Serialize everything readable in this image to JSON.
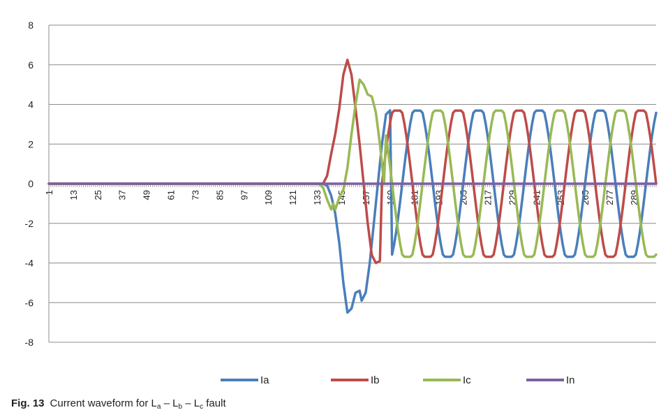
{
  "chart_data": {
    "type": "line",
    "title": "",
    "xlabel": "",
    "ylabel": "",
    "ylim": [
      -8,
      8
    ],
    "y_ticks": [
      "8",
      "6",
      "4",
      "2",
      "0",
      "-2",
      "-4",
      "-6",
      "-8"
    ],
    "x_ticks": [
      "1",
      "13",
      "25",
      "37",
      "49",
      "61",
      "73",
      "85",
      "97",
      "109",
      "121",
      "133",
      "145",
      "157",
      "169",
      "181",
      "193",
      "205",
      "217",
      "229",
      "241",
      "253",
      "265",
      "277",
      "289"
    ],
    "x_range": [
      1,
      300
    ],
    "grid": "horizontal",
    "legend_position": "bottom",
    "fault_start_sample": 136,
    "steady_state_amplitude": 3.8,
    "period_samples": 30,
    "series": [
      {
        "name": "Ia",
        "color": "#4a7ebb",
        "transient_points": [
          [
            136,
            0.0
          ],
          [
            138,
            -0.1
          ],
          [
            140,
            -0.6
          ],
          [
            142,
            -1.5
          ],
          [
            144,
            -3.0
          ],
          [
            146,
            -5.0
          ],
          [
            148,
            -6.5
          ],
          [
            150,
            -6.3
          ],
          [
            152,
            -5.5
          ],
          [
            154,
            -5.4
          ],
          [
            155,
            -5.9
          ],
          [
            157,
            -5.5
          ],
          [
            159,
            -4.0
          ],
          [
            161,
            -2.0
          ],
          [
            163,
            0.0
          ],
          [
            165,
            2.0
          ],
          [
            167,
            3.5
          ],
          [
            169,
            3.7
          ]
        ]
      },
      {
        "name": "Ib",
        "color": "#be4b48",
        "transient_points": [
          [
            136,
            0.0
          ],
          [
            138,
            0.4
          ],
          [
            140,
            1.5
          ],
          [
            142,
            2.5
          ],
          [
            144,
            3.8
          ],
          [
            146,
            5.5
          ],
          [
            148,
            6.25
          ],
          [
            150,
            5.5
          ],
          [
            152,
            3.8
          ],
          [
            154,
            2.0
          ],
          [
            156,
            0.0
          ],
          [
            158,
            -2.0
          ],
          [
            160,
            -3.6
          ],
          [
            162,
            -4.0
          ],
          [
            164,
            -3.9
          ]
        ]
      },
      {
        "name": "Ic",
        "color": "#98b954",
        "transient_points": [
          [
            134,
            0.0
          ],
          [
            136,
            -0.2
          ],
          [
            138,
            -0.8
          ],
          [
            140,
            -1.3
          ],
          [
            141,
            -1.0
          ],
          [
            142,
            -1.3
          ],
          [
            144,
            -0.7
          ],
          [
            146,
            -0.3
          ],
          [
            148,
            0.8
          ],
          [
            150,
            2.5
          ],
          [
            152,
            4.0
          ],
          [
            154,
            5.25
          ],
          [
            156,
            5.0
          ],
          [
            158,
            4.5
          ],
          [
            160,
            4.4
          ],
          [
            162,
            3.6
          ],
          [
            164,
            2.0
          ],
          [
            166,
            0.0
          ]
        ]
      },
      {
        "name": "In",
        "color": "#7d60a0",
        "values_note": "",
        "constant": 0
      }
    ]
  },
  "caption": {
    "label": "Fig. 13",
    "text_before": "Current waveform for L",
    "sub_a": "a",
    "sep1": " – L",
    "sub_b": "b",
    "sep2": " – L",
    "sub_c": "c",
    "text_after": " fault"
  }
}
